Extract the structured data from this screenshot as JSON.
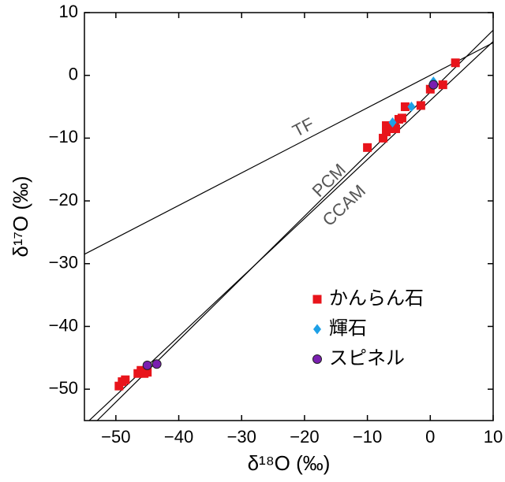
{
  "chart_data": {
    "type": "scatter",
    "x_label": "δ¹⁸O (‰)",
    "y_label": "δ¹⁷O (‰)",
    "xlim": [
      -55,
      10
    ],
    "ylim": [
      -55,
      10
    ],
    "xticks": [
      {
        "value": -50,
        "label": "−50"
      },
      {
        "value": -40,
        "label": "−40"
      },
      {
        "value": -30,
        "label": "−30"
      },
      {
        "value": -20,
        "label": "−20"
      },
      {
        "value": -10,
        "label": "−10"
      },
      0,
      10
    ],
    "yticks": [
      {
        "value": -50,
        "label": "−50"
      },
      {
        "value": -40,
        "label": "−40"
      },
      {
        "value": -30,
        "label": "−30"
      },
      {
        "value": -20,
        "label": "−20"
      },
      {
        "value": -10,
        "label": "−10"
      },
      0,
      10
    ],
    "legend": "right",
    "lines": [
      {
        "label": "TF",
        "x": [
          -55,
          10
        ],
        "values": [
          -28.5,
          5.2
        ]
      },
      {
        "label": "PCM",
        "x": [
          -55,
          10
        ],
        "values": [
          -57,
          7.2
        ]
      },
      {
        "label": "CCAM",
        "x": [
          -55,
          10
        ],
        "values": [
          -55.7,
          5.4
        ]
      }
    ],
    "series": [
      {
        "name": "かんらん石",
        "color": "#e8141b",
        "marker": "square",
        "x": [
          4,
          2,
          0,
          -1.5,
          -4,
          -4.5,
          -5,
          -6,
          -6.5,
          -7,
          -7.5,
          -7,
          -5.5,
          -10,
          -49.5,
          -49,
          -48.5,
          -46.5,
          -45.5,
          -45,
          -46
        ],
        "values": [
          2,
          -1.5,
          -2.2,
          -4.8,
          -5,
          -6.8,
          -7,
          -8,
          -8.5,
          -9,
          -10,
          -8,
          -8.5,
          -11.5,
          -49.5,
          -48.8,
          -48.5,
          -47.5,
          -47.5,
          -47.3,
          -47
        ]
      },
      {
        "name": "輝石",
        "color": "#1ea0e6",
        "marker": "diamond",
        "x": [
          -6,
          -3,
          0.5
        ],
        "values": [
          -7.5,
          -5,
          -1
        ]
      },
      {
        "name": "スピネル",
        "color": "#7a1fb0",
        "marker": "circle",
        "x": [
          -45,
          -43.5,
          0.5
        ],
        "values": [
          -46.2,
          -46,
          -1.5
        ]
      }
    ]
  }
}
